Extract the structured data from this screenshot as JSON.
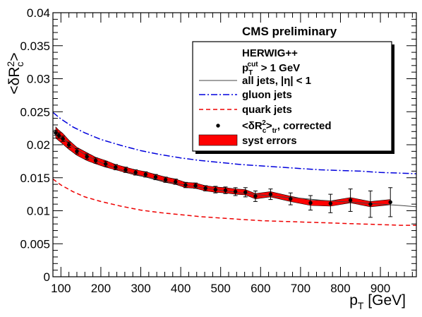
{
  "chart_data": {
    "type": "line",
    "title": "CMS preliminary",
    "xlabel": "p_T [GeV]",
    "ylabel": "<δR_c^2>",
    "xlim": [
      80,
      990
    ],
    "ylim": [
      0,
      0.04
    ],
    "x_ticks": [
      100,
      200,
      300,
      400,
      500,
      600,
      700,
      800,
      900
    ],
    "y_ticks": [
      0,
      0.005,
      0.01,
      0.015,
      0.02,
      0.025,
      0.03,
      0.035,
      0.04
    ],
    "y_tick_labels": [
      "0",
      "0.005",
      "0.01",
      "0.015",
      "0.02",
      "0.025",
      "0.03",
      "0.035",
      "0.04"
    ],
    "legend": {
      "position": "top-right",
      "header": "HERWIG++",
      "subheader": "p_T^cut > 1 GeV",
      "entries": [
        {
          "label": "all jets, |η| < 1",
          "style": "line",
          "color": "#444444"
        },
        {
          "label": "gluon jets",
          "style": "dashdot",
          "color": "#0000dd"
        },
        {
          "label": "quark jets",
          "style": "dashed",
          "color": "#ee0000"
        },
        {
          "label": "<δR_c^2>_tr, corrected",
          "style": "marker",
          "color": "#000000"
        },
        {
          "label": "syst errors",
          "style": "band",
          "color": "#ff0000"
        }
      ]
    },
    "series": [
      {
        "name": "gluon jets",
        "color": "#0000dd",
        "x": [
          80,
          100,
          130,
          160,
          200,
          250,
          300,
          350,
          400,
          450,
          500,
          550,
          600,
          650,
          700,
          750,
          800,
          850,
          900,
          950,
          990
        ],
        "y": [
          0.0249,
          0.0239,
          0.0227,
          0.0218,
          0.0208,
          0.0199,
          0.0191,
          0.0185,
          0.018,
          0.0176,
          0.0173,
          0.017,
          0.0168,
          0.0166,
          0.0164,
          0.0162,
          0.0161,
          0.016,
          0.0158,
          0.0157,
          0.0156
        ]
      },
      {
        "name": "quark jets",
        "color": "#ee0000",
        "x": [
          80,
          100,
          130,
          160,
          200,
          250,
          300,
          350,
          400,
          450,
          500,
          550,
          600,
          650,
          700,
          750,
          800,
          850,
          900,
          950,
          990
        ],
        "y": [
          0.0148,
          0.0139,
          0.0129,
          0.0121,
          0.0114,
          0.0107,
          0.0101,
          0.0097,
          0.0094,
          0.0091,
          0.0089,
          0.0087,
          0.0085,
          0.0084,
          0.0083,
          0.0082,
          0.0081,
          0.008,
          0.0079,
          0.0078,
          0.0078
        ]
      },
      {
        "name": "all jets, |η| < 1",
        "color": "#444444",
        "x": [
          85,
          100,
          130,
          160,
          200,
          250,
          300,
          350,
          400,
          450,
          500,
          550,
          600,
          650,
          700,
          750,
          800,
          850,
          900,
          950,
          990
        ],
        "y": [
          0.0222,
          0.0212,
          0.0197,
          0.0185,
          0.0173,
          0.0162,
          0.0153,
          0.0146,
          0.014,
          0.0135,
          0.0131,
          0.0127,
          0.0124,
          0.0121,
          0.0119,
          0.0116,
          0.0114,
          0.0112,
          0.011,
          0.0108,
          0.0106
        ]
      }
    ],
    "points": {
      "name": "<δR_c^2>_tr, corrected",
      "x": [
        87,
        95,
        105,
        120,
        140,
        165,
        187,
        212,
        237,
        262,
        287,
        312,
        337,
        362,
        387,
        412,
        437,
        462,
        487,
        512,
        537,
        562,
        587,
        625,
        675,
        725,
        775,
        825,
        875,
        925
      ],
      "y": [
        0.0218,
        0.0214,
        0.0209,
        0.02,
        0.019,
        0.0182,
        0.0176,
        0.0171,
        0.0166,
        0.0162,
        0.0158,
        0.0155,
        0.0151,
        0.0147,
        0.0144,
        0.0139,
        0.0138,
        0.0134,
        0.0132,
        0.0131,
        0.0129,
        0.0128,
        0.0122,
        0.0125,
        0.0118,
        0.0112,
        0.0111,
        0.0116,
        0.011,
        0.0113
      ],
      "err": [
        0.0004,
        0.0004,
        0.0004,
        0.0004,
        0.0004,
        0.0004,
        0.0004,
        0.0004,
        0.0004,
        0.0004,
        0.0004,
        0.0004,
        0.0004,
        0.0004,
        0.0004,
        0.0004,
        0.0004,
        0.0004,
        0.0005,
        0.0005,
        0.0006,
        0.0007,
        0.0008,
        0.0008,
        0.0009,
        0.0011,
        0.0014,
        0.0017,
        0.002,
        0.0022
      ]
    },
    "syst_band": {
      "name": "syst errors",
      "color": "#ff0000",
      "x": [
        87,
        95,
        105,
        120,
        140,
        165,
        187,
        212,
        237,
        262,
        287,
        312,
        337,
        362,
        387,
        412,
        437,
        462,
        487,
        512,
        537,
        562,
        587,
        625,
        675,
        725,
        775,
        825,
        875,
        925
      ],
      "low": [
        0.021,
        0.0206,
        0.0201,
        0.0193,
        0.0184,
        0.0176,
        0.0171,
        0.0166,
        0.0162,
        0.0158,
        0.0154,
        0.0151,
        0.0147,
        0.0143,
        0.014,
        0.0135,
        0.0134,
        0.013,
        0.0128,
        0.0127,
        0.0125,
        0.0124,
        0.0118,
        0.0121,
        0.0114,
        0.0108,
        0.0107,
        0.0112,
        0.0106,
        0.0109
      ],
      "high": [
        0.0227,
        0.0222,
        0.0217,
        0.0207,
        0.0196,
        0.0188,
        0.0181,
        0.0176,
        0.017,
        0.0166,
        0.0162,
        0.0159,
        0.0155,
        0.0151,
        0.0148,
        0.0143,
        0.0142,
        0.0138,
        0.0136,
        0.0135,
        0.0133,
        0.0132,
        0.0126,
        0.0129,
        0.0122,
        0.0116,
        0.0115,
        0.012,
        0.0114,
        0.0117
      ]
    }
  }
}
